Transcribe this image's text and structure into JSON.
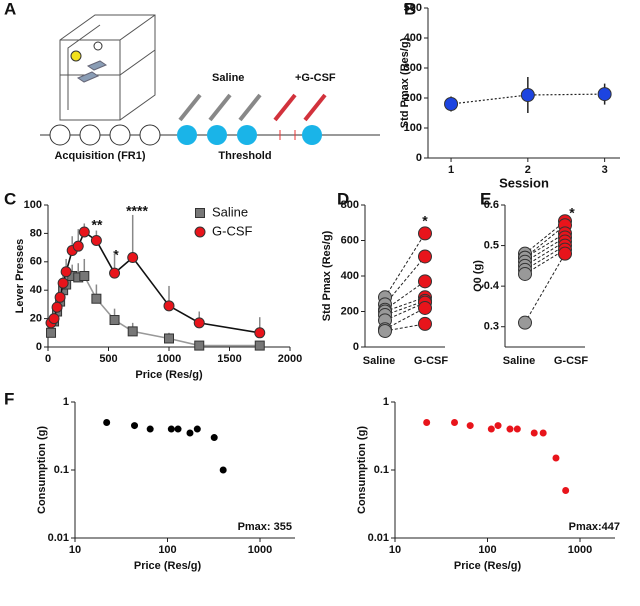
{
  "panel_a": {
    "panel": "A",
    "saline": "Saline",
    "gcsf": "+G-CSF",
    "acquisition": "Acquisition (FR1)",
    "threshold": "Threshold"
  },
  "chart_data": [
    {
      "type": "line",
      "panel": "B",
      "xlabel": "Session",
      "ylabel": "Std Pmax (Res/g)",
      "x": [
        1,
        2,
        3
      ],
      "xlim": [
        0.7,
        3.2
      ],
      "xticks": [
        1,
        2,
        3
      ],
      "ylim": [
        0,
        500
      ],
      "yticks": [
        0,
        100,
        200,
        300,
        400,
        500
      ],
      "linestyle": "dotted",
      "error_bars": "both",
      "series": [
        {
          "color": "#1d44e0",
          "marker": "circle",
          "line_color": "#222",
          "values": [
            180,
            210,
            213
          ],
          "errors": [
            25,
            60,
            35
          ]
        }
      ]
    },
    {
      "type": "line",
      "panel": "C",
      "xlabel": "Price (Res/g)",
      "ylabel": "Lever Presses",
      "x": [
        25,
        50,
        75,
        100,
        125,
        150,
        200,
        250,
        300,
        400,
        550,
        700,
        1000,
        1250,
        1750
      ],
      "xlim": [
        0,
        2000
      ],
      "xticks": [
        0,
        500,
        1000,
        1500,
        2000
      ],
      "ylim": [
        0,
        100
      ],
      "yticks": [
        0,
        20,
        40,
        60,
        80,
        100
      ],
      "linestyle": "solid",
      "error_bars": "upper",
      "legend": "upper right",
      "annotations": [
        "**",
        "*",
        "****"
      ],
      "series": [
        {
          "name": "Saline",
          "color": "#777777",
          "marker": "square",
          "line_color": "#999999",
          "values": [
            10,
            18,
            25,
            32,
            40,
            44,
            50,
            49,
            50,
            34,
            19,
            11,
            6,
            1,
            1
          ],
          "errors": [
            3,
            4,
            5,
            6,
            6,
            7,
            8,
            10,
            12,
            10,
            8,
            6,
            4,
            2,
            1
          ]
        },
        {
          "name": "G-CSF",
          "color": "#e8141b",
          "marker": "circle",
          "line_color": "#111111",
          "values": [
            17,
            20,
            28,
            35,
            45,
            53,
            68,
            71,
            81,
            75,
            52,
            63,
            29,
            17,
            10
          ],
          "errors": [
            4,
            5,
            6,
            7,
            8,
            9,
            10,
            12,
            6,
            7,
            14,
            30,
            14,
            8,
            11
          ]
        }
      ]
    },
    {
      "type": "paired",
      "panel": "D",
      "ylabel": "Std Pmax (Res/g)",
      "categories": [
        "Saline",
        "G-CSF"
      ],
      "colors": [
        "#999999",
        "#e8141b"
      ],
      "ylim": [
        0,
        800
      ],
      "yticks": [
        0,
        200,
        400,
        600,
        800
      ],
      "annotations": [
        "*"
      ],
      "series": [
        {
          "values": [
            280,
            640
          ]
        },
        {
          "values": [
            240,
            510
          ]
        },
        {
          "values": [
            210,
            370
          ]
        },
        {
          "values": [
            200,
            280
          ]
        },
        {
          "values": [
            180,
            260
          ]
        },
        {
          "values": [
            150,
            250
          ]
        },
        {
          "values": [
            100,
            220
          ]
        },
        {
          "values": [
            90,
            130
          ]
        }
      ]
    },
    {
      "type": "paired",
      "panel": "E",
      "ylabel": "Q0 (g)",
      "categories": [
        "Saline",
        "G-CSF"
      ],
      "colors": [
        "#999999",
        "#e8141b"
      ],
      "ylim": [
        0.25,
        0.6
      ],
      "yticks": [
        0.3,
        0.4,
        0.5,
        0.6
      ],
      "annotations": [
        "*"
      ],
      "series": [
        {
          "values": [
            0.48,
            0.56
          ]
        },
        {
          "values": [
            0.47,
            0.55
          ]
        },
        {
          "values": [
            0.47,
            0.53
          ]
        },
        {
          "values": [
            0.46,
            0.52
          ]
        },
        {
          "values": [
            0.45,
            0.51
          ]
        },
        {
          "values": [
            0.44,
            0.5
          ]
        },
        {
          "values": [
            0.43,
            0.49
          ]
        },
        {
          "values": [
            0.31,
            0.48
          ]
        }
      ]
    },
    {
      "type": "scatter",
      "panel": "F",
      "xlabel": "Price (Res/g)",
      "ylabel": "Consumption (g)",
      "xscale": "log",
      "yscale": "log",
      "xlim": [
        10,
        1000
      ],
      "xticks": [
        10,
        100,
        1000
      ],
      "ylim": [
        0.01,
        1
      ],
      "yticks": [
        0.01,
        0.1,
        1
      ],
      "color": "#000000",
      "annotations": [
        "Pmax: 355"
      ],
      "x": [
        22,
        44,
        65,
        110,
        130,
        175,
        210,
        320,
        400
      ],
      "values": [
        0.5,
        0.45,
        0.4,
        0.4,
        0.4,
        0.35,
        0.4,
        0.3,
        0.1
      ]
    },
    {
      "type": "scatter",
      "xlabel": "Price (Res/g)",
      "ylabel": "Consumption (g)",
      "xscale": "log",
      "yscale": "log",
      "xlim": [
        10,
        1000
      ],
      "xticks": [
        10,
        100,
        1000
      ],
      "ylim": [
        0.01,
        1
      ],
      "yticks": [
        0.01,
        0.1,
        1
      ],
      "color": "#e8141b",
      "annotations": [
        "Pmax:447"
      ],
      "x": [
        22,
        44,
        65,
        110,
        130,
        175,
        210,
        320,
        400,
        550,
        700
      ],
      "values": [
        0.5,
        0.5,
        0.45,
        0.4,
        0.45,
        0.4,
        0.4,
        0.35,
        0.35,
        0.15,
        0.05
      ]
    }
  ]
}
